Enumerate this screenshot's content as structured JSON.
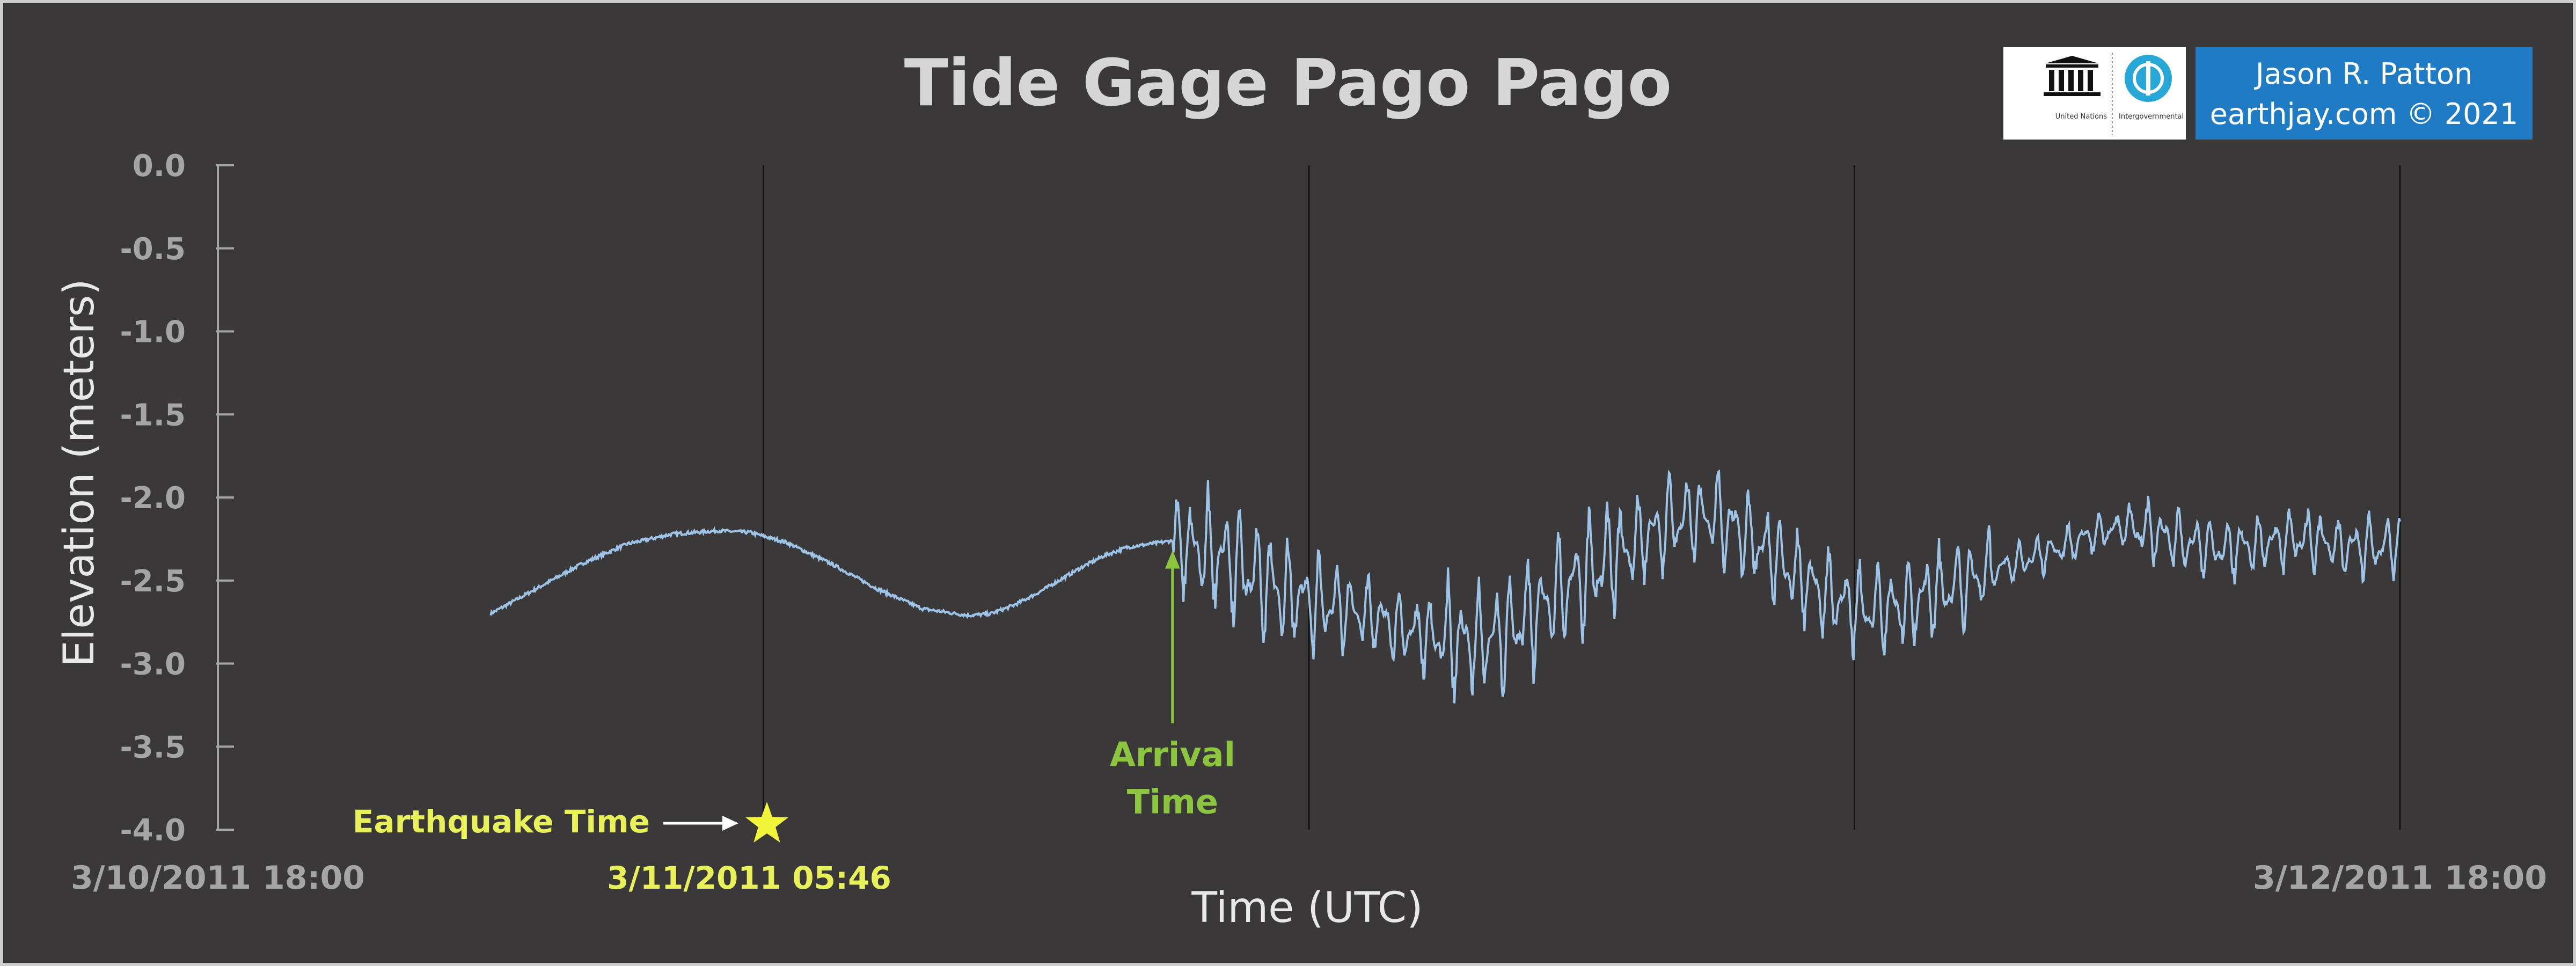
{
  "chart_data": {
    "type": "line",
    "title": "Tide Gage Pago Pago",
    "xlabel": "Time (UTC)",
    "ylabel": "Elevation (meters)",
    "ylim": [
      -4.0,
      0.0
    ],
    "yticks": [
      "0.0",
      "-0.5",
      "-1.0",
      "-1.5",
      "-2.0",
      "-2.5",
      "-3.0",
      "-3.5",
      "-4.0"
    ],
    "xticks_labels": [
      "3/10/2011 18:00",
      "3/12/2011 18:00"
    ],
    "x_range_hours": [
      0,
      48
    ],
    "grid": "vertical lines every 12 hours",
    "series": [
      {
        "color": "#9dc3e6",
        "x_hours": [
          6.0,
          7.0,
          8.0,
          9.0,
          10.0,
          11.0,
          11.7,
          12.5,
          13.5,
          14.5,
          15.5,
          16.5,
          17.0,
          17.5,
          18.0,
          18.5,
          19.0,
          19.5,
          20.0,
          20.5,
          21.0,
          21.5,
          22.0,
          22.5,
          23.0,
          23.5,
          24.0,
          24.5,
          25.0,
          25.5,
          26.0,
          26.5,
          27.0,
          27.5,
          28.0,
          28.5,
          29.0,
          29.5,
          30.0,
          30.5,
          31.0,
          31.5,
          32.0,
          32.5,
          33.0,
          33.5,
          34.0,
          34.5,
          35.0,
          35.5,
          36.0,
          36.5,
          37.0,
          37.5,
          38.0,
          38.5,
          39.0,
          39.5,
          40.0,
          40.5,
          41.0,
          41.5,
          42.0,
          42.5,
          43.0,
          43.5,
          44.0,
          44.5,
          45.0,
          45.5,
          46.0,
          46.5,
          47.0,
          47.5,
          48.0
        ],
        "elevation_m": [
          -2.7,
          -2.55,
          -2.4,
          -2.28,
          -2.22,
          -2.2,
          -2.21,
          -2.27,
          -2.4,
          -2.55,
          -2.67,
          -2.71,
          -2.7,
          -2.65,
          -2.58,
          -2.5,
          -2.42,
          -2.35,
          -2.3,
          -2.28,
          -2.26,
          -2.3,
          -2.35,
          -2.42,
          -2.5,
          -2.58,
          -2.63,
          -2.65,
          -2.68,
          -2.73,
          -2.78,
          -2.82,
          -2.85,
          -2.88,
          -2.85,
          -2.78,
          -2.68,
          -2.58,
          -2.48,
          -2.4,
          -2.32,
          -2.22,
          -2.15,
          -2.1,
          -2.12,
          -2.2,
          -2.3,
          -2.42,
          -2.52,
          -2.6,
          -2.66,
          -2.68,
          -2.66,
          -2.6,
          -2.55,
          -2.5,
          -2.45,
          -2.4,
          -2.35,
          -2.3,
          -2.25,
          -2.2,
          -2.18,
          -2.2,
          -2.25,
          -2.28,
          -2.3,
          -2.3,
          -2.28,
          -2.25,
          -2.25,
          -2.28,
          -2.3,
          -2.3,
          -2.28
        ]
      }
    ],
    "annotations": {
      "earthquake_label": "Earthquake Time",
      "earthquake_time": "3/11/2011 05:46",
      "earthquake_hours": 11.77,
      "earthquake_marker_color": "#f2f53a",
      "arrival_label_1": "Arrival",
      "arrival_label_2": "Time",
      "arrival_hours": 21.0,
      "arrival_color": "#8cc63f"
    }
  },
  "credit": {
    "line1": "Jason R. Patton",
    "line2": "earthjay.com © 2021",
    "bg": "#1e7bc4"
  },
  "logo": {
    "text1": "United Nations Educational, Scientific and Cultural Organization",
    "text2": "Intergovernmental Oceanographic Commission"
  }
}
